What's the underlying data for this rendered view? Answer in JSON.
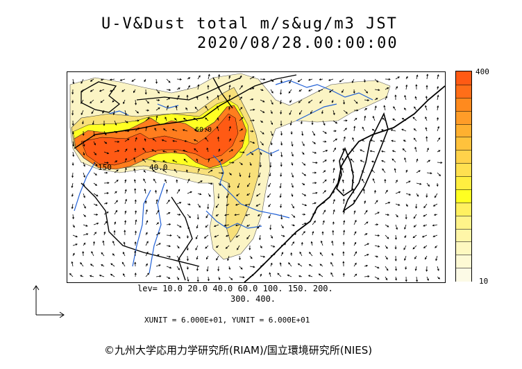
{
  "title": {
    "line1": "U-V&Dust total m/s&ug/m3 JST",
    "line2": "2020/08/28.00:00:00"
  },
  "map": {
    "contour_labels": [
      "150",
      "40.0",
      "60.0"
    ],
    "colors": {
      "land_outline": "#000000",
      "rivers": "#1f5fd6",
      "vectors": "#000000",
      "dust_low": "#fbf4c4",
      "dust_mid": "#f8e07a",
      "dust_yellow": "#ffff22",
      "dust_high": "#ff7d1e",
      "dust_max": "#ff5a14"
    }
  },
  "colorbar": {
    "max_label": "400",
    "min_label": "10",
    "colors": [
      "#ff5a14",
      "#ff6e18",
      "#ff8a1e",
      "#ff9c28",
      "#ffb030",
      "#ffc23c",
      "#ffd24a",
      "#ffe050",
      "#ffee40",
      "#ffff22",
      "#fff060",
      "#fff38a",
      "#fff6a8",
      "#fef8c0",
      "#fdf9d4",
      "#fcfae6"
    ]
  },
  "levels": {
    "line1": "lev= 10.0 20.0 40.0 60.0 100. 150. 200.",
    "line2": "300. 400."
  },
  "units": "XUNIT = 6.000E+01, YUNIT = 6.000E+01",
  "copyright": "©九州大学応用力学研究所(RIAM)/国立環境研究所(NIES)"
}
